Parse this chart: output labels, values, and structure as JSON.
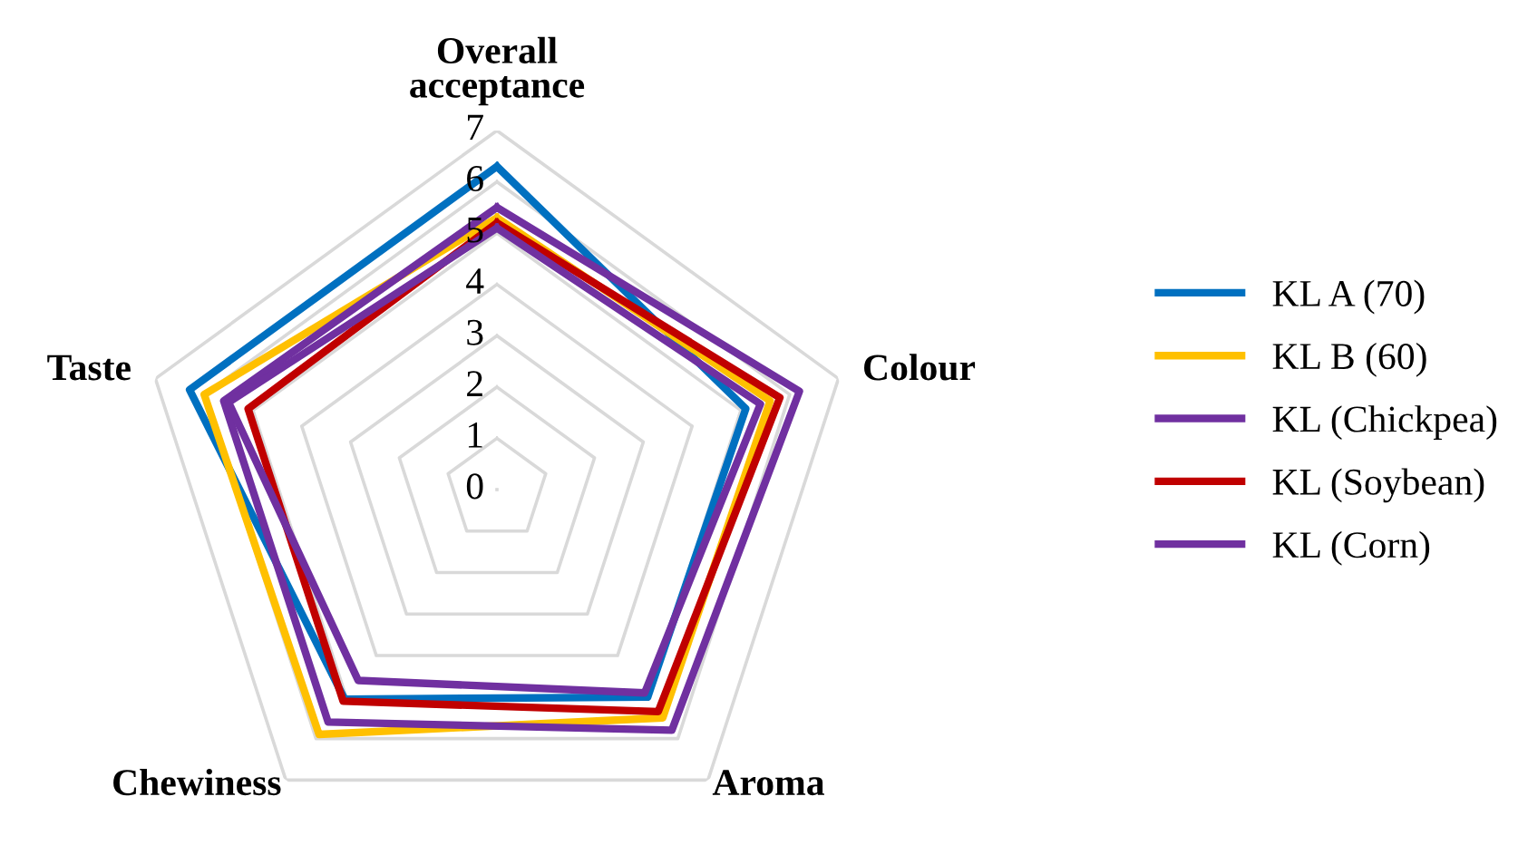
{
  "chart_data": {
    "type": "radar",
    "categories": [
      "Overall\nacceptance",
      "Colour",
      "Aroma",
      "Chewiness",
      "Taste"
    ],
    "ylim": [
      0,
      7
    ],
    "yticks": [
      0,
      1,
      2,
      3,
      4,
      5,
      6,
      7
    ],
    "grid": true,
    "legend": "right",
    "marker": "none",
    "series": [
      {
        "name": "KL A (70)",
        "color": "#0070c0",
        "values": [
          6.3,
          5.1,
          5.0,
          5.05,
          6.3
        ]
      },
      {
        "name": "KL B (60)",
        "color": "#ffc000",
        "values": [
          5.3,
          5.6,
          5.5,
          5.9,
          6.0
        ]
      },
      {
        "name": "KL (Chickpea)",
        "color": "#7030a0",
        "values": [
          5.5,
          6.2,
          5.8,
          5.6,
          5.6
        ]
      },
      {
        "name": "KL (Soybean)",
        "color": "#c00000",
        "values": [
          5.2,
          5.8,
          5.35,
          5.1,
          5.1
        ]
      },
      {
        "name": "KL (Corn)",
        "color": "#7030a0",
        "values": [
          5.1,
          5.4,
          4.9,
          4.6,
          5.5
        ]
      }
    ]
  }
}
